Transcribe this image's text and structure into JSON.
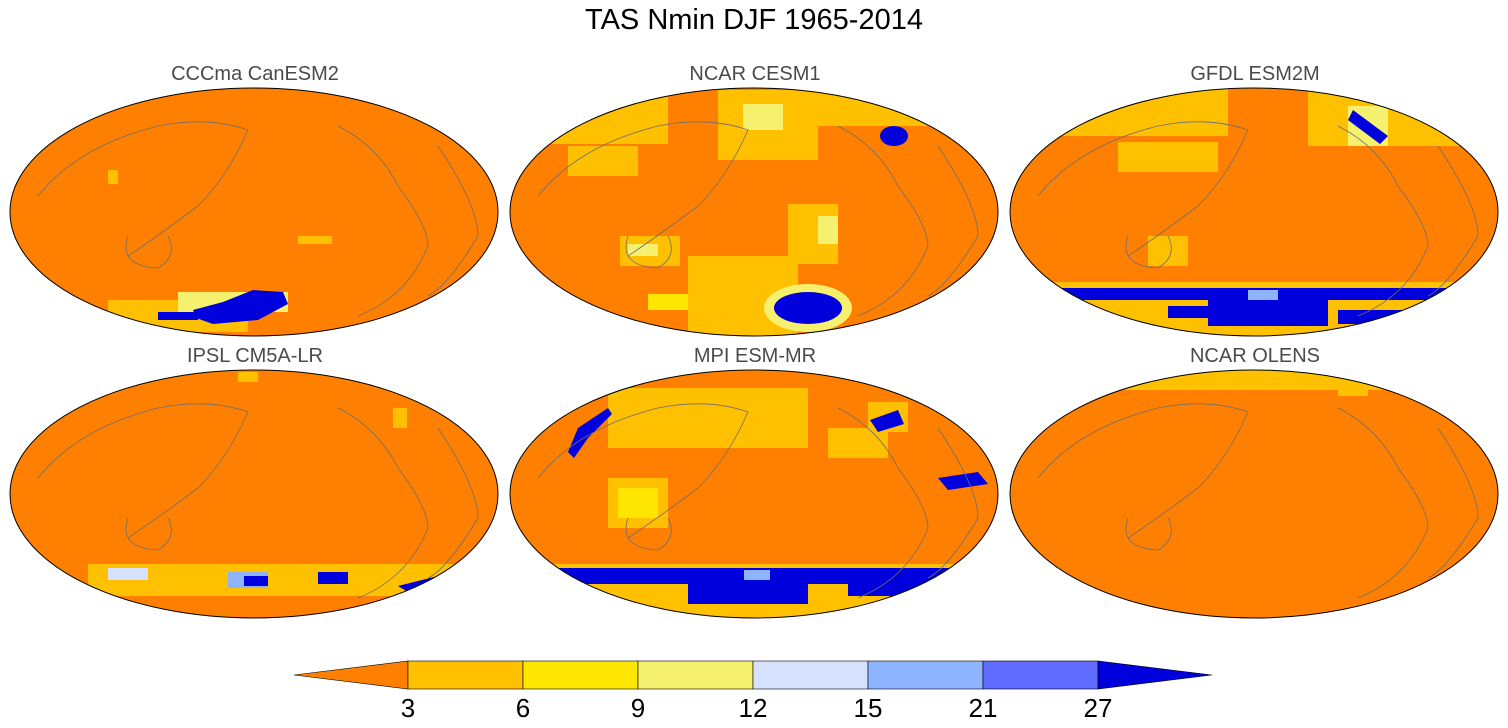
{
  "title": "TAS Nmin DJF 1965-2014",
  "panels": [
    {
      "title": "CCCma CanESM2"
    },
    {
      "title": "NCAR CESM1"
    },
    {
      "title": "GFDL ESM2M"
    },
    {
      "title": "IPSL CM5A-LR"
    },
    {
      "title": "MPI ESM-MR"
    },
    {
      "title": "NCAR OLENS"
    }
  ],
  "colorbar": {
    "labels": [
      "3",
      "6",
      "9",
      "12",
      "15",
      "21",
      "27"
    ],
    "colors": [
      "#ff8000",
      "#ffc000",
      "#ffe600",
      "#f5f06e",
      "#d6e0ff",
      "#8fb4ff",
      "#5f6aff",
      "#0000dc"
    ]
  },
  "colors": {
    "ocean_base": "#ff8000",
    "coastline": "#6e6e6e",
    "outline": "#000000"
  }
}
